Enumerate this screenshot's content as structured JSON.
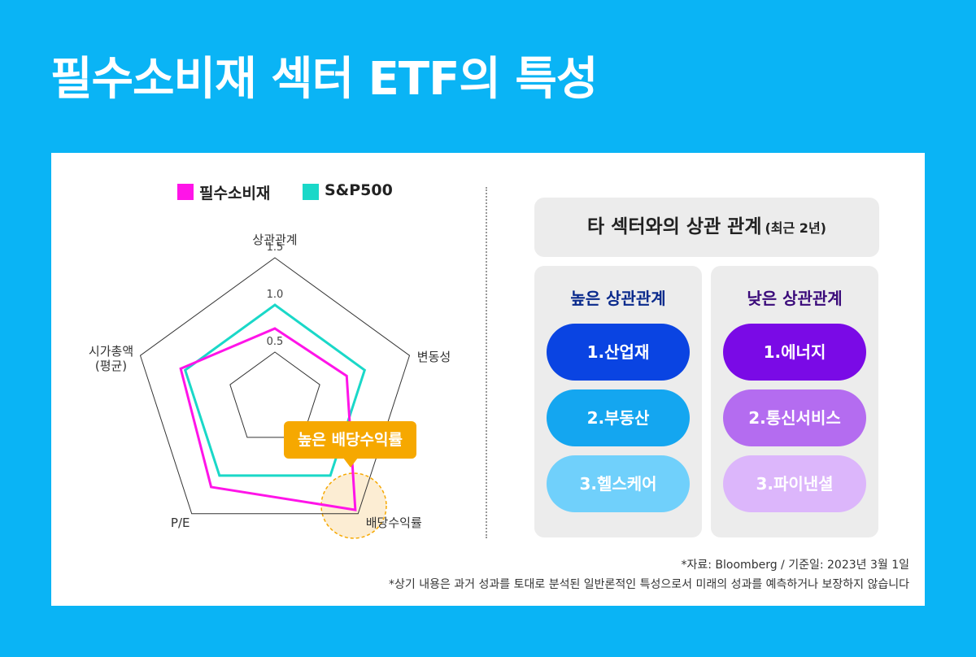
{
  "title": "필수소비재 섹터 ETF의 특성",
  "chart_data": {
    "type": "radar",
    "categories": [
      "상관관계",
      "변동성",
      "배당수익률",
      "P/E",
      "시가총액\n(평균)"
    ],
    "series": [
      {
        "name": "필수소비재",
        "color": "#ff14e8",
        "values": [
          0.75,
          0.8,
          1.45,
          1.15,
          1.05
        ]
      },
      {
        "name": "S&P500",
        "color": "#1ad8c8",
        "values": [
          1,
          1,
          1,
          1,
          1
        ]
      }
    ],
    "rlim": [
      0,
      1.5
    ],
    "rticks": [
      0.5,
      {
        "value": 1,
        "label": "1.0"
      },
      {
        "value": 1.5,
        "label": "1.5"
      }
    ],
    "annotation": "높은 배당수익률"
  },
  "correlation": {
    "title": "타 섹터와의 상관 관계",
    "period": "(최근 2년)",
    "columns": [
      {
        "heading": "높은 상관관계",
        "items": [
          "1.산업재",
          "2.부동산",
          "3.헬스케어"
        ]
      },
      {
        "heading": "낮은 상관관계",
        "items": [
          "1.에너지",
          "2.통신서비스",
          "3.파이낸셜"
        ]
      }
    ]
  },
  "footnotes": [
    "*자료: Bloomberg / 기준일: 2023년 3월 1일",
    "*상기 내용은 과거 성과를 토대로 분석된 일반론적인 특성으로서 미래의 성과를 예측하거나 보장하지 않습니다"
  ]
}
